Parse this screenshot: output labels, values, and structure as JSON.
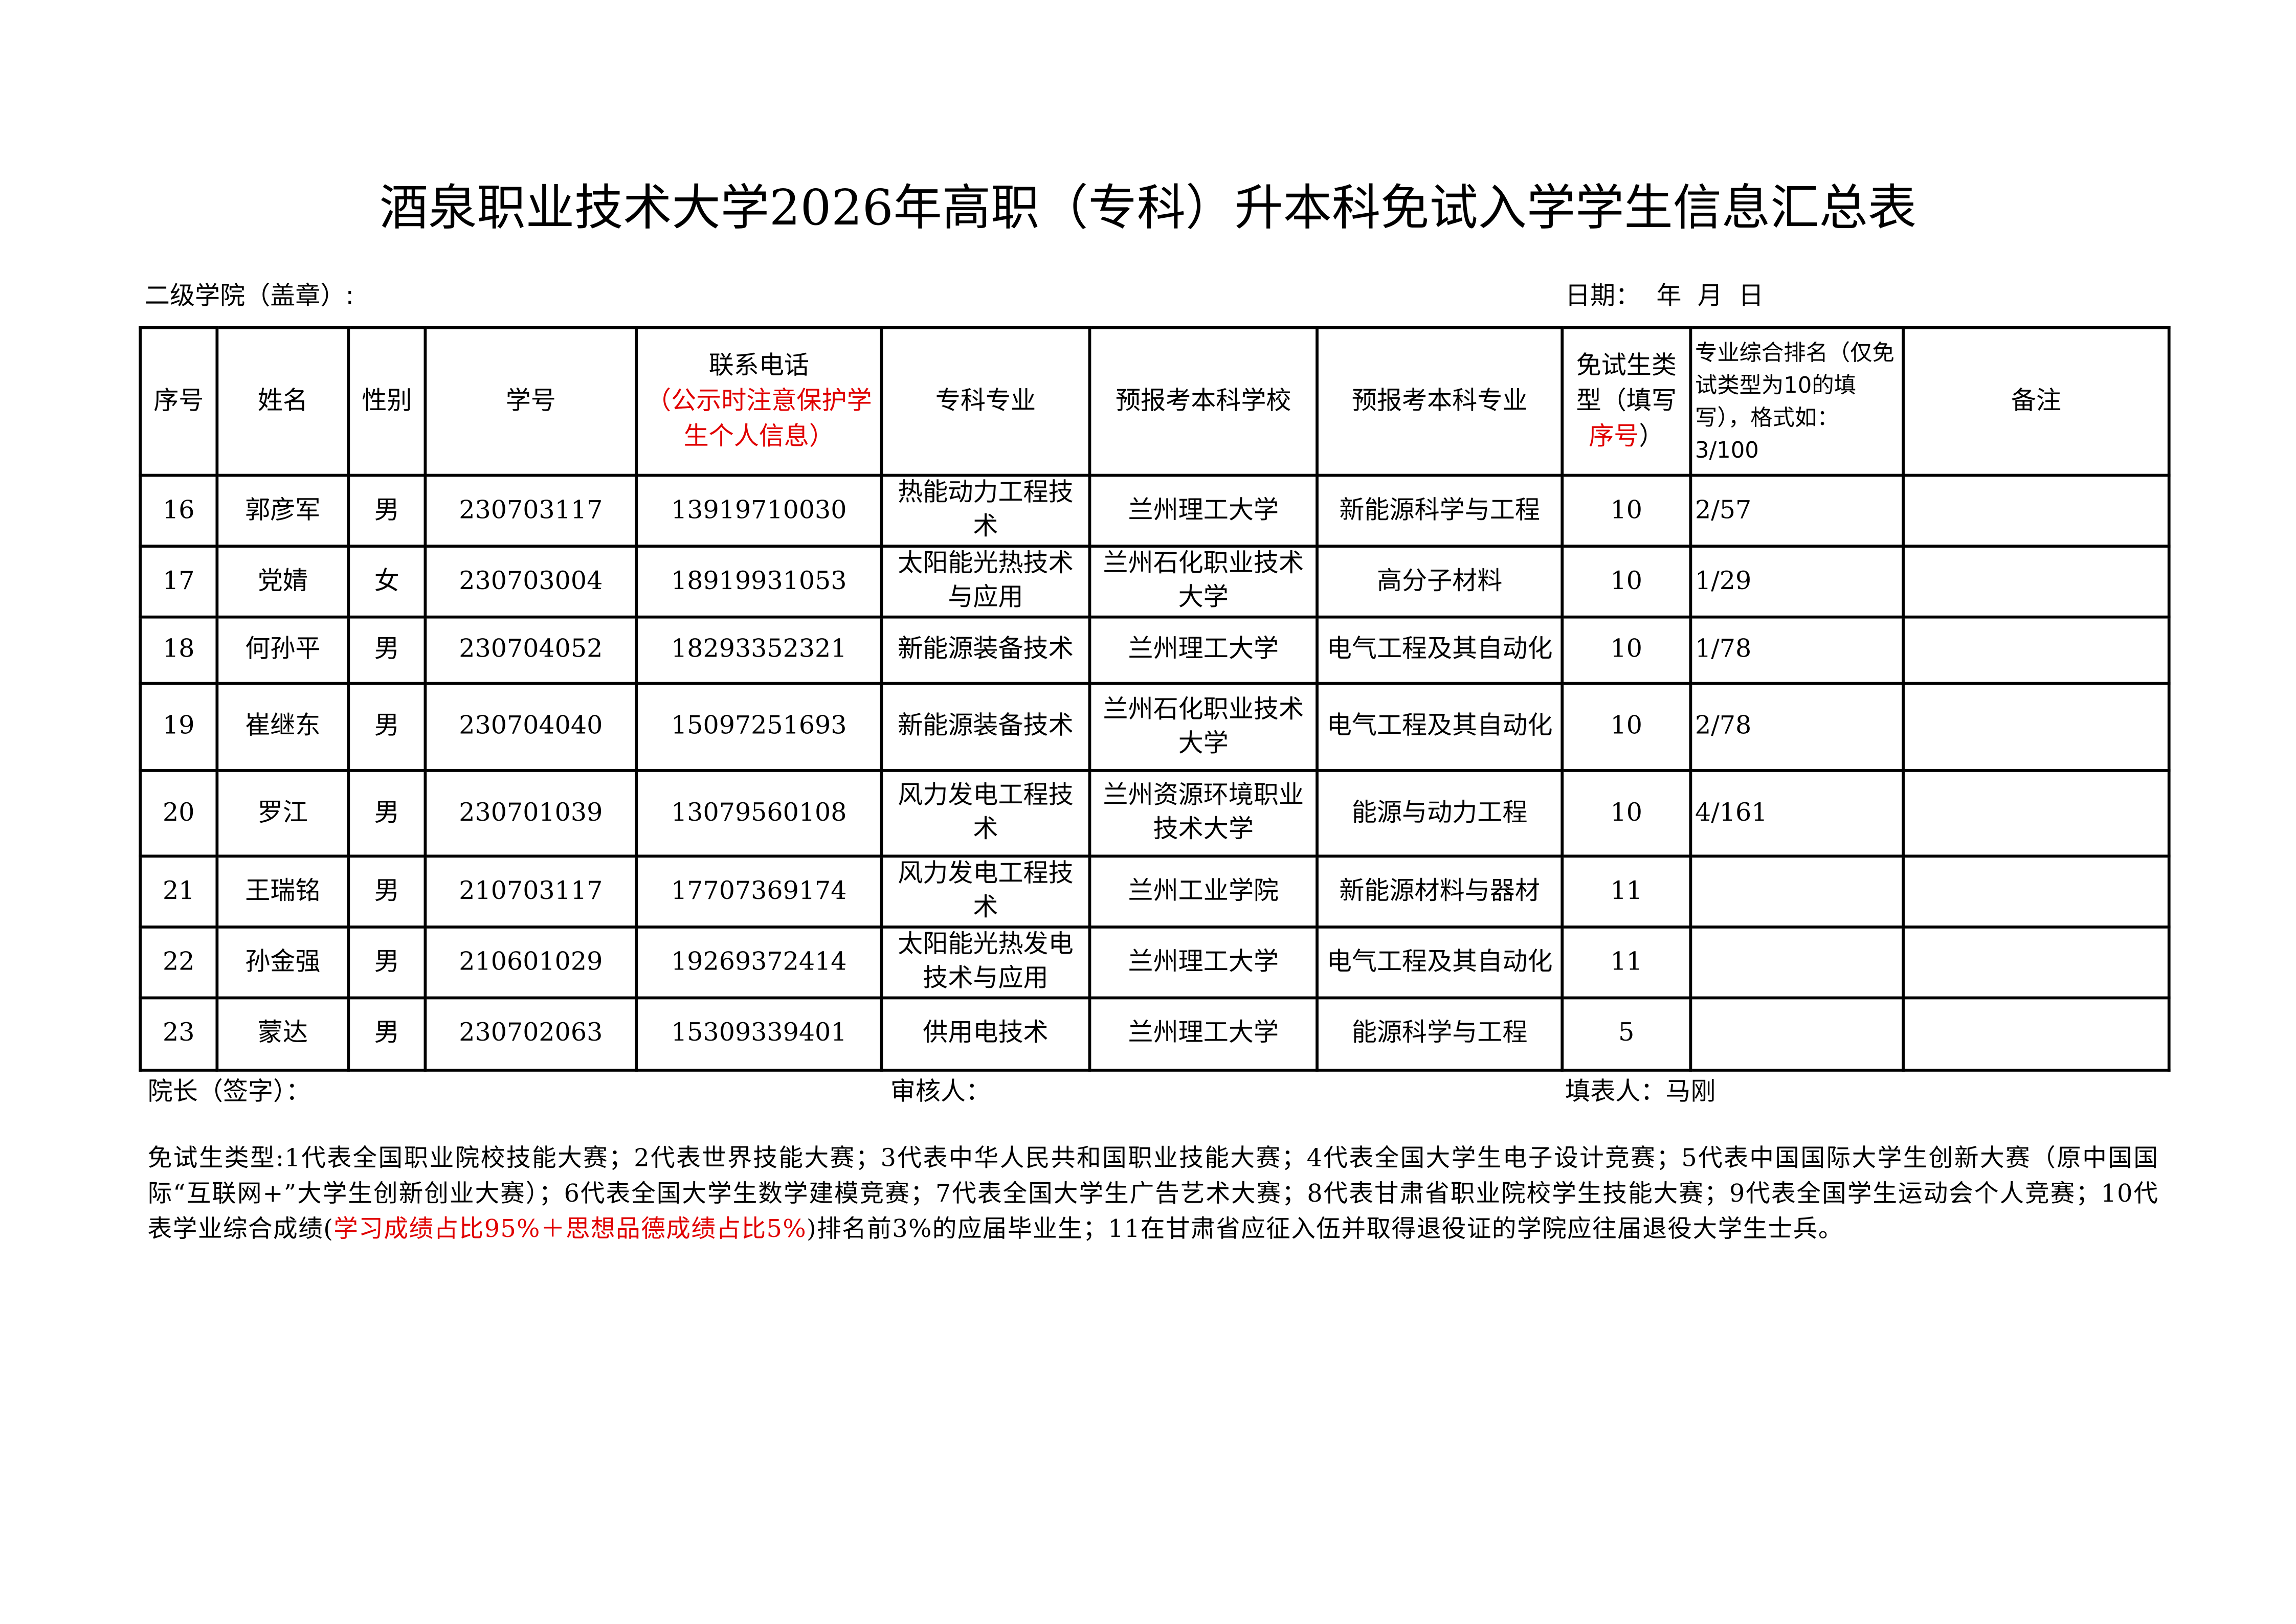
{
  "title": "酒泉职业技术大学2026年高职（专科）升本科免试入学学生信息汇总表",
  "college_label": "二级学院（盖章）:",
  "date_label": "日期：  年  月  日",
  "headers": {
    "seq": "序号",
    "name": "姓名",
    "gender": "性别",
    "student_id": "学号",
    "phone": "联系电话",
    "phone_note": "（公示时注意保护学生个人信息）",
    "junior_major": "专科专业",
    "target_school": "预报考本科学校",
    "target_major": "预报考本科专业",
    "exempt_type": "免试生类型（填写",
    "exempt_type_red": "序号",
    "exempt_type_end": "）",
    "ranking": "专业综合排名（仅免试类型为10的填写），格式如：3/100",
    "remarks": "备注"
  },
  "rows": [
    {
      "seq": "16",
      "name": "郭彦军",
      "gender": "男",
      "student_id": "230703117",
      "phone": "13919710030",
      "junior_major": "热能动力工程技术",
      "target_school": "兰州理工大学",
      "target_major": "新能源科学与工程",
      "exempt_type": "10",
      "ranking": "2/57",
      "remarks": ""
    },
    {
      "seq": "17",
      "name": "党婧",
      "gender": "女",
      "student_id": "230703004",
      "phone": "18919931053",
      "junior_major": "太阳能光热技术与应用",
      "target_school": "兰州石化职业技术大学",
      "target_major": "高分子材料",
      "exempt_type": "10",
      "ranking": "1/29",
      "remarks": ""
    },
    {
      "seq": "18",
      "name": "何孙平",
      "gender": "男",
      "student_id": "230704052",
      "phone": "18293352321",
      "junior_major": "新能源装备技术",
      "target_school": "兰州理工大学",
      "target_major": "电气工程及其自动化",
      "exempt_type": "10",
      "ranking": "1/78",
      "remarks": ""
    },
    {
      "seq": "19",
      "name": "崔继东",
      "gender": "男",
      "student_id": "230704040",
      "phone": "15097251693",
      "junior_major": "新能源装备技术",
      "target_school": "兰州石化职业技术大学",
      "target_major": "电气工程及其自动化",
      "exempt_type": "10",
      "ranking": "2/78",
      "remarks": ""
    },
    {
      "seq": "20",
      "name": "罗江",
      "gender": "男",
      "student_id": "230701039",
      "phone": "13079560108",
      "junior_major": "风力发电工程技术",
      "target_school": "兰州资源环境职业技术大学",
      "target_major": "能源与动力工程",
      "exempt_type": "10",
      "ranking": "4/161",
      "remarks": ""
    },
    {
      "seq": "21",
      "name": "王瑞铭",
      "gender": "男",
      "student_id": "210703117",
      "phone": "17707369174",
      "junior_major": "风力发电工程技术",
      "target_school": "兰州工业学院",
      "target_major": "新能源材料与器材",
      "exempt_type": "11",
      "ranking": "",
      "remarks": ""
    },
    {
      "seq": "22",
      "name": "孙金强",
      "gender": "男",
      "student_id": "210601029",
      "phone": "19269372414",
      "junior_major": "太阳能光热发电技术与应用",
      "target_school": "兰州理工大学",
      "target_major": "电气工程及其自动化",
      "exempt_type": "11",
      "ranking": "",
      "remarks": ""
    },
    {
      "seq": "23",
      "name": "蒙达",
      "gender": "男",
      "student_id": "230702063",
      "phone": "15309339401",
      "junior_major": "供用电技术",
      "target_school": "兰州理工大学",
      "target_major": "能源科学与工程",
      "exempt_type": "5",
      "ranking": "",
      "remarks": ""
    }
  ],
  "footer": {
    "dean": "院长（签字）：",
    "reviewer": "审核人：",
    "filler": "填表人：马刚"
  },
  "notes": {
    "part1": "免试生类型:1代表全国职业院校技能大赛；2代表世界技能大赛；3代表中华人民共和国职业技能大赛；4代表全国大学生电子设计竞赛；5代表中国国际大学生创新大赛（原中国国际“互联网+”大学生创新创业大赛）；6代表全国大学生数学建模竞赛；7代表全国大学生广告艺术大赛；8代表甘肃省职业院校学生技能大赛；9代表全国学生运动会个人竞赛；10代表学业综合成绩(",
    "red": "学习成绩占比95%＋思想品德成绩占比5%",
    "part2": ")排名前3%的应届毕业生；11在甘肃省应征入伍并取得退役证的学院应往届退役大学生士兵。"
  },
  "colors": {
    "highlight": "#e00000"
  }
}
